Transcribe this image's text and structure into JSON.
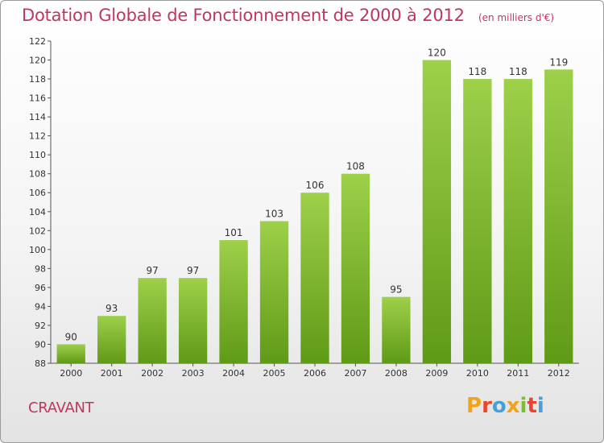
{
  "header": {
    "title": "Dotation Globale de Fonctionnement de 2000 à 2012",
    "subtitle": "(en milliers d'€)"
  },
  "footer": {
    "commune": "CRAVANT",
    "logo_text": "Proxiti"
  },
  "colors": {
    "accent": "#c0365f",
    "bar_light": "#9ed04a",
    "bar_dark": "#5f9a16",
    "logo_letters": [
      "#f2a31b",
      "#e8452c",
      "#4a9fd8",
      "#f2a31b",
      "#7bbf2a",
      "#e8452c",
      "#4a9fd8"
    ]
  },
  "chart_data": {
    "type": "bar",
    "categories": [
      "2000",
      "2001",
      "2002",
      "2003",
      "2004",
      "2005",
      "2006",
      "2007",
      "2008",
      "2009",
      "2010",
      "2011",
      "2012"
    ],
    "values": [
      90,
      93,
      97,
      97,
      101,
      103,
      106,
      108,
      95,
      120,
      118,
      118,
      119
    ],
    "ylim": [
      88,
      122
    ],
    "yticks": [
      "88",
      "90",
      "92",
      "94",
      "96",
      "98",
      "100",
      "102",
      "104",
      "106",
      "108",
      "110",
      "112",
      "114",
      "116",
      "118",
      "120",
      "122"
    ],
    "grid": false,
    "data_labels": true
  }
}
